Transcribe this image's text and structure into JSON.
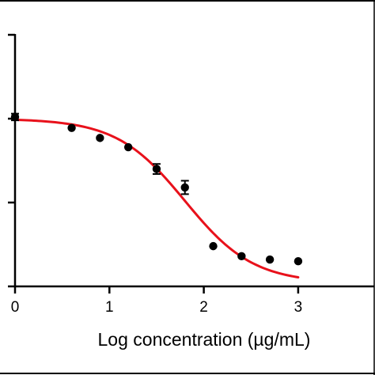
{
  "chart_data": {
    "type": "scatter",
    "title": "",
    "xlabel": "Log concentration (µg/mL)",
    "ylabel": "",
    "xlim": [
      0,
      4
    ],
    "ylim": [
      0,
      150
    ],
    "x_ticks": [
      0,
      1,
      2,
      3
    ],
    "x_tick_labels": [
      "0",
      "1",
      "2",
      "3"
    ],
    "y_ticks": [
      0,
      50,
      100,
      150
    ],
    "series": [
      {
        "kind": "points",
        "marker": "circle",
        "color": "#000000",
        "points": [
          {
            "x": 0,
            "y": 101,
            "err": 2
          },
          {
            "x": 0.6,
            "y": 94.5
          },
          {
            "x": 0.9,
            "y": 88.5
          },
          {
            "x": 1.2,
            "y": 83
          },
          {
            "x": 1.5,
            "y": 70,
            "err": 3
          },
          {
            "x": 1.8,
            "y": 59,
            "err": 4
          },
          {
            "x": 2.1,
            "y": 24
          },
          {
            "x": 2.4,
            "y": 18
          },
          {
            "x": 2.7,
            "y": 16
          },
          {
            "x": 3.0,
            "y": 15
          }
        ]
      },
      {
        "kind": "fit",
        "color": "#e8111b",
        "model": "four-parameter logistic",
        "top": 100,
        "bottom": 2,
        "logEC50": 1.8,
        "hill": -1.2,
        "x_range": [
          0,
          3
        ]
      }
    ],
    "grid": false,
    "legend": "none"
  }
}
